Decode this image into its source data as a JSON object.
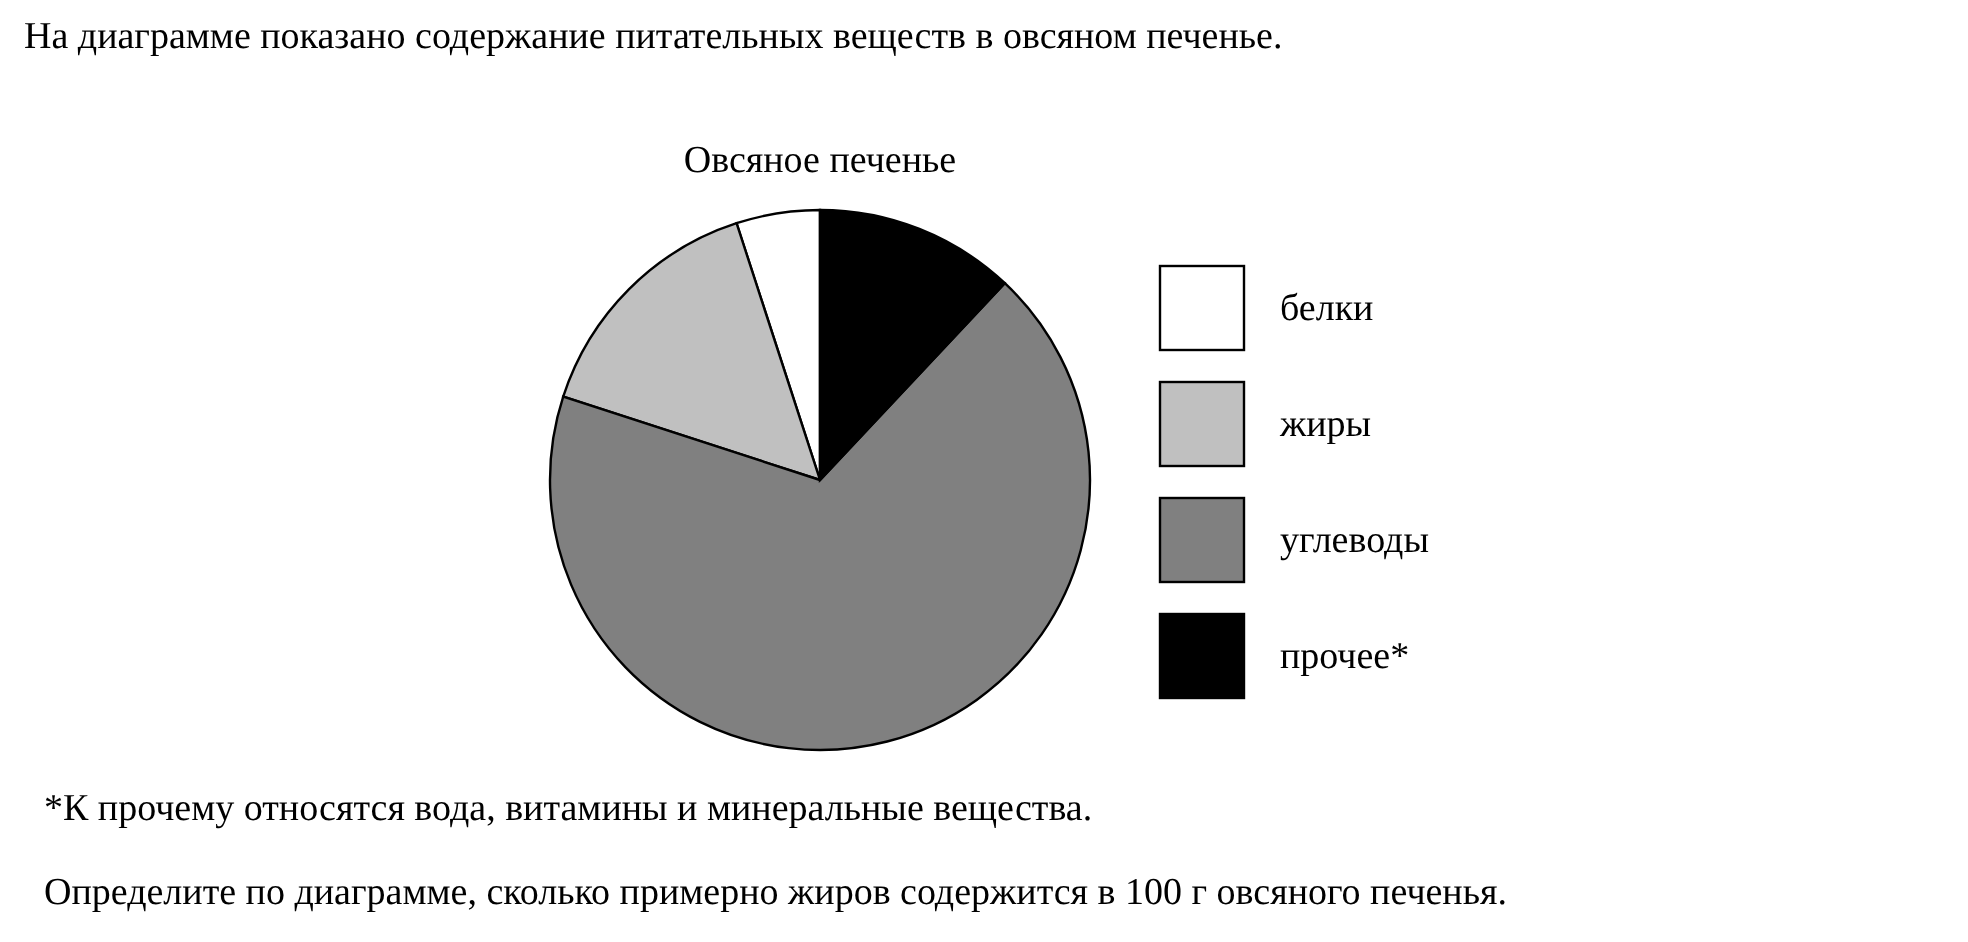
{
  "chart_data": {
    "type": "pie",
    "title": "Овсяное печенье",
    "categories": [
      "белки",
      "жиры",
      "углеводы",
      "прочее*"
    ],
    "values": [
      5,
      15,
      68,
      12
    ],
    "colors": [
      "#ffffff",
      "#c0c0c0",
      "#808080",
      "#000000"
    ],
    "legend": "right",
    "annotations": [
      "На диаграмме показано содержание питательных веществ в овсяном печенье.",
      "*К прочему относятся вода, витамины и минеральные вещества.",
      "Определите по диаграмме, сколько примерно жиров содержится в 100 г овсяного печенья."
    ]
  }
}
